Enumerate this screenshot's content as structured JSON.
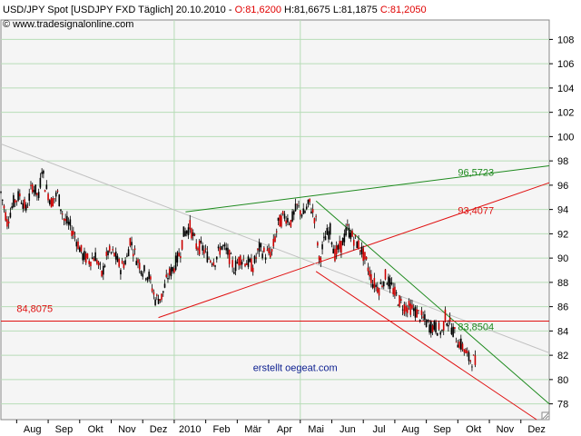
{
  "header": {
    "title_prefix": "USD/JPY Spot [USDJPY FXD  Täglich] 20.10.2010 - ",
    "open": "O:81,6200",
    "hl": " H:81,6675 L:81,1875 ",
    "close": "C:81,2050",
    "watermark_site": "© www.tradesignalonline.com"
  },
  "colors": {
    "open": "#e00000",
    "close": "#e00000",
    "grid": "#b7dcb7",
    "green_line": "#1e8a1e",
    "red_line": "#e01010",
    "gray_line": "#c0c0c0",
    "plot_bg": "#f5f5f5",
    "footer_text": "#0b1e8f"
  },
  "chart_data": {
    "type": "candlestick",
    "x_axis": {
      "labels": [
        "Aug",
        "Sep",
        "Okt",
        "Nov",
        "Dez",
        "2010",
        "Feb",
        "Mär",
        "Apr",
        "Mai",
        "Jun",
        "Jul",
        "Aug",
        "Sep",
        "Okt",
        "Nov",
        "Dez"
      ],
      "positions": [
        0.5,
        1.5,
        2.5,
        3.5,
        4.5,
        5.5,
        6.5,
        7.5,
        8.5,
        9.5,
        10.5,
        11.5,
        12.5,
        13.5,
        14.5,
        15.5,
        16.5
      ],
      "range": [
        -0.5,
        16.9
      ]
    },
    "y_axis": {
      "ticks": [
        78,
        80,
        82,
        84,
        86,
        88,
        90,
        92,
        94,
        96,
        98,
        100,
        102,
        104,
        106,
        108
      ],
      "range": [
        76.7,
        109.6
      ]
    },
    "grid": {
      "horizontal": true,
      "vertical_at_month_index": [
        5,
        9
      ]
    },
    "series": [
      {
        "x": -0.5,
        "y": 95.4
      },
      {
        "x": -0.3,
        "y": 93.0
      },
      {
        "x": -0.1,
        "y": 94.6
      },
      {
        "x": 0.1,
        "y": 95.2
      },
      {
        "x": 0.3,
        "y": 94.0
      },
      {
        "x": 0.5,
        "y": 96.0
      },
      {
        "x": 0.7,
        "y": 95.0
      },
      {
        "x": 0.8,
        "y": 97.5
      },
      {
        "x": 0.9,
        "y": 96.0
      },
      {
        "x": 1.1,
        "y": 94.6
      },
      {
        "x": 1.3,
        "y": 95.3
      },
      {
        "x": 1.5,
        "y": 93.2
      },
      {
        "x": 1.7,
        "y": 92.6
      },
      {
        "x": 1.9,
        "y": 91.5
      },
      {
        "x": 2.1,
        "y": 90.2
      },
      {
        "x": 2.3,
        "y": 89.8
      },
      {
        "x": 2.5,
        "y": 90.2
      },
      {
        "x": 2.7,
        "y": 88.6
      },
      {
        "x": 2.9,
        "y": 90.5
      },
      {
        "x": 3.1,
        "y": 90.3
      },
      {
        "x": 3.3,
        "y": 89.2
      },
      {
        "x": 3.5,
        "y": 90.0
      },
      {
        "x": 3.6,
        "y": 91.5
      },
      {
        "x": 3.8,
        "y": 90.0
      },
      {
        "x": 4.0,
        "y": 89.0
      },
      {
        "x": 4.2,
        "y": 88.5
      },
      {
        "x": 4.4,
        "y": 86.6
      },
      {
        "x": 4.6,
        "y": 86.8
      },
      {
        "x": 4.8,
        "y": 88.5
      },
      {
        "x": 5.0,
        "y": 89.3
      },
      {
        "x": 5.2,
        "y": 90.6
      },
      {
        "x": 5.3,
        "y": 92.0
      },
      {
        "x": 5.5,
        "y": 92.6
      },
      {
        "x": 5.7,
        "y": 91.0
      },
      {
        "x": 5.9,
        "y": 90.8
      },
      {
        "x": 6.1,
        "y": 90.0
      },
      {
        "x": 6.3,
        "y": 89.8
      },
      {
        "x": 6.5,
        "y": 91.0
      },
      {
        "x": 6.7,
        "y": 90.4
      },
      {
        "x": 6.9,
        "y": 89.2
      },
      {
        "x": 7.1,
        "y": 90.0
      },
      {
        "x": 7.3,
        "y": 89.7
      },
      {
        "x": 7.5,
        "y": 89.3
      },
      {
        "x": 7.7,
        "y": 90.8
      },
      {
        "x": 7.9,
        "y": 90.3
      },
      {
        "x": 8.1,
        "y": 90.5
      },
      {
        "x": 8.3,
        "y": 92.8
      },
      {
        "x": 8.5,
        "y": 93.5
      },
      {
        "x": 8.7,
        "y": 93.0
      },
      {
        "x": 8.9,
        "y": 94.2
      },
      {
        "x": 9.1,
        "y": 93.6
      },
      {
        "x": 9.3,
        "y": 94.5
      },
      {
        "x": 9.5,
        "y": 93.0
      },
      {
        "x": 9.6,
        "y": 89.7
      },
      {
        "x": 9.8,
        "y": 91.8
      },
      {
        "x": 9.95,
        "y": 92.3
      },
      {
        "x": 10.1,
        "y": 90.3
      },
      {
        "x": 10.3,
        "y": 91.0
      },
      {
        "x": 10.5,
        "y": 92.4
      },
      {
        "x": 10.7,
        "y": 91.6
      },
      {
        "x": 10.9,
        "y": 90.9
      },
      {
        "x": 11.1,
        "y": 89.6
      },
      {
        "x": 11.3,
        "y": 88.0
      },
      {
        "x": 11.5,
        "y": 87.5
      },
      {
        "x": 11.7,
        "y": 88.5
      },
      {
        "x": 11.9,
        "y": 87.6
      },
      {
        "x": 12.1,
        "y": 86.6
      },
      {
        "x": 12.3,
        "y": 86.0
      },
      {
        "x": 12.5,
        "y": 85.9
      },
      {
        "x": 12.7,
        "y": 85.5
      },
      {
        "x": 12.9,
        "y": 85.0
      },
      {
        "x": 13.1,
        "y": 84.4
      },
      {
        "x": 13.3,
        "y": 84.3
      },
      {
        "x": 13.5,
        "y": 83.9
      },
      {
        "x": 13.6,
        "y": 85.2
      },
      {
        "x": 13.8,
        "y": 84.3
      },
      {
        "x": 14.0,
        "y": 83.2
      },
      {
        "x": 14.2,
        "y": 82.5
      },
      {
        "x": 14.35,
        "y": 81.7
      },
      {
        "x": 14.5,
        "y": 81.6
      },
      {
        "x": 14.6,
        "y": 81.2
      }
    ],
    "lines": [
      {
        "name": "green-upper",
        "color": "#1e8a1e",
        "from": [
          5.36,
          93.8
        ],
        "to": [
          16.9,
          97.6
        ]
      },
      {
        "name": "red-upper",
        "color": "#e01010",
        "from": [
          4.5,
          85.1
        ],
        "to": [
          16.9,
          96.2
        ]
      },
      {
        "name": "gray",
        "color": "#c0c0c0",
        "from": [
          -0.5,
          99.4
        ],
        "to": [
          16.9,
          82.2
        ]
      },
      {
        "name": "green-down",
        "color": "#1e8a1e",
        "from": [
          9.5,
          94.7
        ],
        "to": [
          16.9,
          78.0
        ]
      },
      {
        "name": "red-down",
        "color": "#e01010",
        "from": [
          9.5,
          88.9
        ],
        "to": [
          16.5,
          76.7
        ]
      },
      {
        "name": "red-horizontal",
        "color": "#e01010",
        "from": [
          -0.5,
          84.81
        ],
        "to": [
          16.9,
          84.81
        ]
      }
    ],
    "annotations": [
      {
        "text": "96,5723",
        "x": 14.0,
        "y": 96.57,
        "color": "#1e8a1e"
      },
      {
        "text": "93,4077",
        "x": 14.0,
        "y": 93.41,
        "color": "#e01010"
      },
      {
        "text": "84,8075",
        "x": 0.0,
        "y": 85.35,
        "color": "#e01010"
      },
      {
        "text": "83,8504",
        "x": 14.0,
        "y": 83.85,
        "color": "#1e8a1e"
      }
    ],
    "footer": {
      "text": "erstellt oegeat.com",
      "x": 7.5,
      "y": 80.7
    }
  }
}
